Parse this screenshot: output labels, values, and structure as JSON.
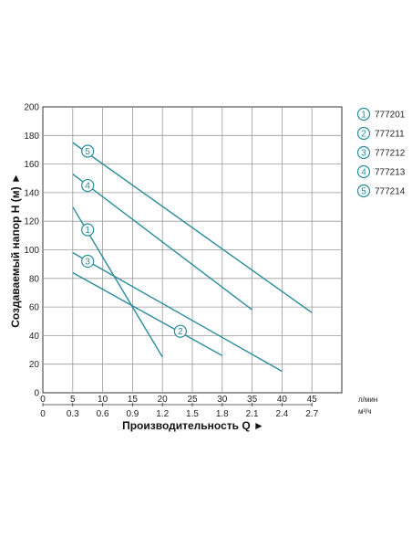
{
  "chart_data": {
    "type": "line",
    "xlabel": "Производительность Q ►",
    "ylabel": "Создаваемый напор H (м) ►",
    "x_units_primary": "л/мин",
    "x_units_secondary": "м³/ч",
    "x_ticks_primary": [
      "0",
      "5",
      "10",
      "15",
      "20",
      "25",
      "30",
      "35",
      "40",
      "45"
    ],
    "x_ticks_secondary": [
      "0",
      "0.3",
      "0.6",
      "0.9",
      "1.2",
      "1.5",
      "1.8",
      "2.1",
      "2.4",
      "2.7"
    ],
    "y_ticks": [
      "0",
      "20",
      "40",
      "60",
      "80",
      "100",
      "120",
      "140",
      "160",
      "180",
      "200"
    ],
    "xlim": [
      0,
      50
    ],
    "ylim": [
      0,
      200
    ],
    "grid": true,
    "legend_position": "right",
    "line_color": "#2a8c9c",
    "series": [
      {
        "marker": "1",
        "name": "777201",
        "x": [
          5,
          20
        ],
        "y": [
          130,
          25
        ],
        "label_at": [
          7.5,
          114
        ]
      },
      {
        "marker": "2",
        "name": "777211",
        "x": [
          5,
          30
        ],
        "y": [
          84,
          26
        ],
        "label_at": [
          23,
          43
        ]
      },
      {
        "marker": "3",
        "name": "777212",
        "x": [
          5,
          40
        ],
        "y": [
          98,
          15
        ],
        "label_at": [
          7.5,
          92
        ]
      },
      {
        "marker": "4",
        "name": "777213",
        "x": [
          5,
          35
        ],
        "y": [
          153,
          58
        ],
        "label_at": [
          7.5,
          145
        ]
      },
      {
        "marker": "5",
        "name": "777214",
        "x": [
          5,
          45
        ],
        "y": [
          175,
          56
        ],
        "label_at": [
          7.5,
          169
        ]
      }
    ]
  }
}
